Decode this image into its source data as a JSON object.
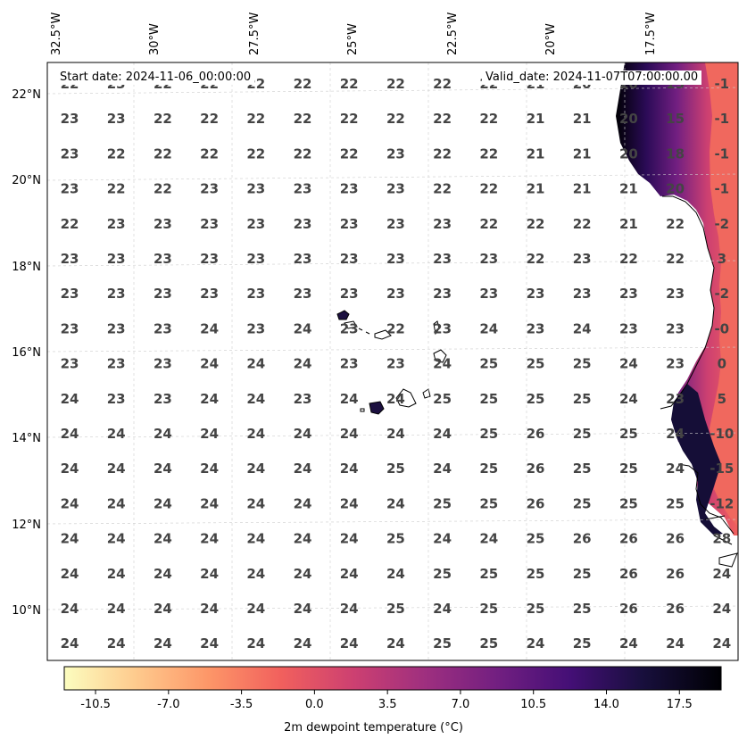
{
  "header": {
    "start_date": "Start date: 2024-11-06_00:00:00",
    "valid_date": "Valid_date: 2024-11-07T07:00:00.00"
  },
  "map": {
    "lon_labels": [
      "32.5°W",
      "30°W",
      "27.5°W",
      "25°W",
      "22.5°W",
      "20°W",
      "17.5°W"
    ],
    "lat_labels": [
      "22°N",
      "20°N",
      "18°N",
      "16°N",
      "14°N",
      "12°N",
      "10°N"
    ],
    "grid_values": [
      [
        "22",
        "23",
        "22",
        "22",
        "22",
        "22",
        "22",
        "22",
        "22",
        "22",
        "21",
        "20",
        "20",
        "15",
        "-1"
      ],
      [
        "23",
        "23",
        "22",
        "22",
        "22",
        "22",
        "22",
        "22",
        "22",
        "22",
        "21",
        "21",
        "20",
        "15",
        "-1"
      ],
      [
        "23",
        "22",
        "22",
        "22",
        "22",
        "22",
        "22",
        "23",
        "22",
        "22",
        "21",
        "21",
        "20",
        "18",
        "-1"
      ],
      [
        "23",
        "22",
        "22",
        "23",
        "23",
        "23",
        "23",
        "23",
        "22",
        "22",
        "21",
        "21",
        "21",
        "20",
        "-1"
      ],
      [
        "22",
        "23",
        "23",
        "23",
        "23",
        "23",
        "23",
        "23",
        "23",
        "22",
        "22",
        "22",
        "21",
        "22",
        "-2"
      ],
      [
        "23",
        "23",
        "23",
        "23",
        "23",
        "23",
        "23",
        "23",
        "23",
        "23",
        "22",
        "23",
        "22",
        "22",
        "3"
      ],
      [
        "23",
        "23",
        "23",
        "23",
        "23",
        "23",
        "23",
        "23",
        "23",
        "23",
        "23",
        "23",
        "23",
        "23",
        "-2"
      ],
      [
        "23",
        "23",
        "23",
        "24",
        "23",
        "24",
        "23",
        "22",
        "23",
        "24",
        "23",
        "24",
        "23",
        "23",
        "-0"
      ],
      [
        "23",
        "23",
        "23",
        "24",
        "24",
        "24",
        "23",
        "23",
        "24",
        "25",
        "25",
        "25",
        "24",
        "23",
        "0"
      ],
      [
        "24",
        "23",
        "23",
        "24",
        "24",
        "23",
        "24",
        "24",
        "25",
        "25",
        "25",
        "25",
        "24",
        "23",
        "5"
      ],
      [
        "24",
        "24",
        "24",
        "24",
        "24",
        "24",
        "24",
        "24",
        "24",
        "25",
        "26",
        "25",
        "25",
        "24",
        "-10"
      ],
      [
        "24",
        "24",
        "24",
        "24",
        "24",
        "24",
        "24",
        "25",
        "24",
        "25",
        "26",
        "25",
        "25",
        "24",
        "-15"
      ],
      [
        "24",
        "24",
        "24",
        "24",
        "24",
        "24",
        "24",
        "24",
        "25",
        "25",
        "26",
        "25",
        "25",
        "25",
        "-12"
      ],
      [
        "24",
        "24",
        "24",
        "24",
        "24",
        "24",
        "24",
        "25",
        "24",
        "24",
        "25",
        "26",
        "26",
        "26",
        "28"
      ],
      [
        "24",
        "24",
        "24",
        "24",
        "24",
        "24",
        "24",
        "24",
        "25",
        "25",
        "25",
        "25",
        "26",
        "26",
        "24"
      ],
      [
        "24",
        "24",
        "24",
        "24",
        "24",
        "24",
        "24",
        "25",
        "24",
        "25",
        "25",
        "25",
        "26",
        "26",
        "24"
      ],
      [
        "24",
        "24",
        "24",
        "24",
        "24",
        "24",
        "24",
        "24",
        "25",
        "25",
        "24",
        "25",
        "24",
        "24",
        "24"
      ]
    ]
  },
  "colorbar": {
    "ticks": [
      "-10.5",
      "-7.0",
      "-3.5",
      "0.0",
      "3.5",
      "7.0",
      "10.5",
      "14.0",
      "17.5"
    ],
    "label": "2m dewpoint temperature (°C)",
    "min": -12,
    "max": 19.5,
    "colors": [
      "#fcfdbf",
      "#feca8d",
      "#fd9668",
      "#f1605d",
      "#cd4071",
      "#9e2f7f",
      "#721f81",
      "#440f76",
      "#180f3d",
      "#000004"
    ]
  }
}
